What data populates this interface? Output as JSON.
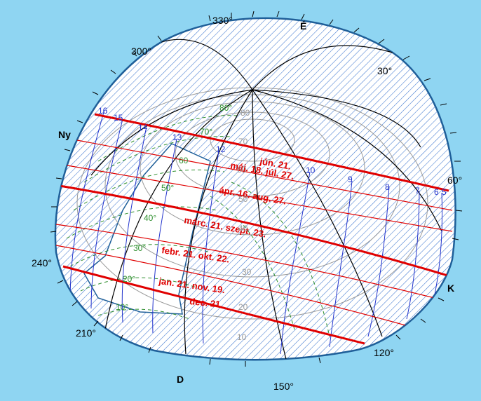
{
  "colors": {
    "background": "#8fd5f2",
    "dome_fill": "#ffffff",
    "hatch": "#3f78d0",
    "meridian": "#000000",
    "sun_path_main": "#e00000",
    "hour_line": "#2233cc",
    "shadow_contour": "#2f8f2f"
  },
  "azimuth_labels": [
    "330°",
    "300°",
    "30°",
    "60°",
    "240°",
    "210°",
    "120°",
    "150°"
  ],
  "cardinal_labels": {
    "north": "É",
    "west": "Ny",
    "east": "K",
    "south": "D"
  },
  "sun_paths": [
    "jún. 21.",
    "máj. 18. júl. 27.",
    "ápr. 16. aug. 27.",
    "márc. 21. szept. 23.",
    "febr. 21. okt. 22.",
    "jan. 21. nov. 19.",
    "dec. 21."
  ],
  "hour_labels": [
    "16",
    "15",
    "14",
    "13",
    "12",
    "10",
    "9",
    "8",
    "7",
    "6",
    "5"
  ],
  "altitude_labels_green": [
    "80°",
    "70°",
    "60",
    "50°",
    "40°",
    "30°",
    "20°",
    "10°"
  ],
  "altitude_labels_grey": [
    "80",
    "70",
    "60",
    "50",
    "40",
    "30",
    "20",
    "10"
  ]
}
